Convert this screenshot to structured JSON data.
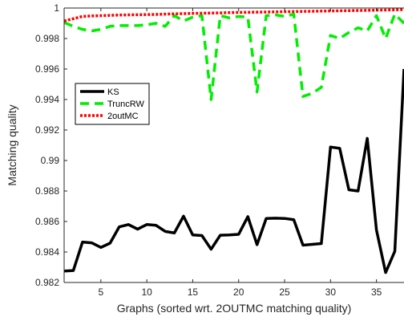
{
  "chart_data": {
    "type": "line",
    "title": "",
    "xlabel": "Graphs (sorted wrt. 2OUTMC matching quality)",
    "ylabel": "Matching quality",
    "xlim": [
      1,
      38
    ],
    "ylim": [
      0.982,
      1.0
    ],
    "xticks": [
      5,
      10,
      15,
      20,
      25,
      30,
      35
    ],
    "yticks": [
      0.982,
      0.984,
      0.986,
      0.988,
      0.99,
      0.992,
      0.994,
      0.996,
      0.998,
      1
    ],
    "ytick_labels": [
      "0.982",
      "0.984",
      "0.986",
      "0.988",
      "0.99",
      "0.992",
      "0.994",
      "0.996",
      "0.998",
      "1"
    ],
    "grid": false,
    "legend_position": "upper-left",
    "x": [
      1,
      2,
      3,
      4,
      5,
      6,
      7,
      8,
      9,
      10,
      11,
      12,
      13,
      14,
      15,
      16,
      17,
      18,
      19,
      20,
      21,
      22,
      23,
      24,
      25,
      26,
      27,
      28,
      29,
      30,
      31,
      32,
      33,
      34,
      35,
      36,
      37,
      38
    ],
    "series": [
      {
        "name": "KS",
        "color": "#000000",
        "style": "solid",
        "values": [
          0.98275,
          0.98278,
          0.98465,
          0.9846,
          0.9843,
          0.98458,
          0.98565,
          0.9858,
          0.9855,
          0.9858,
          0.98575,
          0.98535,
          0.98525,
          0.98635,
          0.98512,
          0.98508,
          0.98418,
          0.9851,
          0.98512,
          0.98516,
          0.98632,
          0.98448,
          0.9862,
          0.98622,
          0.9862,
          0.98612,
          0.98445,
          0.9845,
          0.98455,
          0.99088,
          0.9908,
          0.98808,
          0.988,
          0.99145,
          0.98545,
          0.98265,
          0.98405,
          0.996
        ]
      },
      {
        "name": "TruncRW",
        "color": "#00ee00",
        "style": "dashed",
        "values": [
          0.99905,
          0.9988,
          0.9986,
          0.9985,
          0.9986,
          0.9988,
          0.99885,
          0.99885,
          0.99885,
          0.9989,
          0.999,
          0.9988,
          0.9995,
          0.99915,
          0.9994,
          0.9995,
          0.994,
          0.9995,
          0.99935,
          0.99945,
          0.9994,
          0.9945,
          0.9995,
          0.99955,
          0.99945,
          0.9996,
          0.9942,
          0.9944,
          0.9948,
          0.9982,
          0.998,
          0.9984,
          0.9987,
          0.9985,
          0.9995,
          0.998,
          0.9996,
          0.999
        ]
      },
      {
        "name": "2outMC",
        "color": "#ff0000",
        "style": "dotted",
        "values": [
          0.99915,
          0.9993,
          0.99945,
          0.99948,
          0.9995,
          0.99952,
          0.99954,
          0.99955,
          0.99956,
          0.99957,
          0.99958,
          0.9996,
          0.99962,
          0.99963,
          0.99965,
          0.99966,
          0.99967,
          0.99968,
          0.9997,
          0.99971,
          0.99972,
          0.99973,
          0.99974,
          0.99975,
          0.99976,
          0.99977,
          0.99978,
          0.99979,
          0.9998,
          0.99981,
          0.99982,
          0.99983,
          0.99984,
          0.99985,
          0.99986,
          0.99987,
          0.99988,
          0.9999
        ]
      }
    ]
  }
}
